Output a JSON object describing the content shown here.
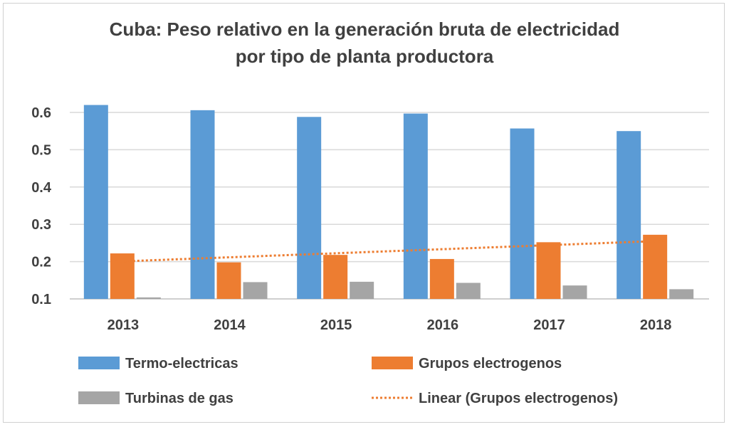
{
  "chart_data": {
    "type": "bar",
    "title_line1": "Cuba: Peso relativo en la generación bruta de electricidad",
    "title_line2": "por tipo de planta productora",
    "categories": [
      "2013",
      "2014",
      "2015",
      "2016",
      "2017",
      "2018"
    ],
    "series": [
      {
        "name": "Termo-electricas",
        "color": "#5b9bd5",
        "values": [
          0.62,
          0.606,
          0.588,
          0.597,
          0.557,
          0.55
        ]
      },
      {
        "name": "Grupos electrogenos",
        "color": "#ed7d31",
        "values": [
          0.222,
          0.198,
          0.218,
          0.207,
          0.252,
          0.272
        ]
      },
      {
        "name": "Turbinas de gas",
        "color": "#a5a5a5",
        "values": [
          0.104,
          0.145,
          0.146,
          0.143,
          0.136,
          0.126
        ]
      }
    ],
    "trendline": {
      "name": "Linear (Grupos electrogenos)",
      "color": "#ed7d31",
      "start": 0.2,
      "end": 0.256
    },
    "yticks": [
      "0.1",
      "0.2",
      "0.3",
      "0.4",
      "0.5",
      "0.6"
    ],
    "ylim": [
      0.1,
      0.62
    ],
    "grid": true,
    "legend_position": "bottom"
  }
}
